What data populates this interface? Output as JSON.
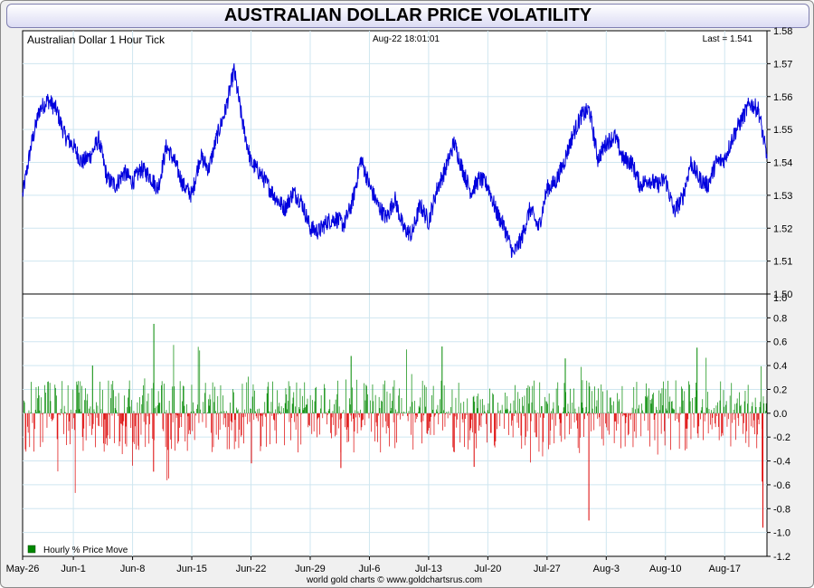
{
  "title": "AUSTRALIAN DOLLAR PRICE VOLATILITY",
  "credit": "world gold charts © www.goldchartsrus.com",
  "colors": {
    "price_line": "#0000dd",
    "up_bar": "#008800",
    "down_bar": "#dd0000",
    "grid": "#cfe6f0"
  },
  "chart_data": [
    {
      "type": "line",
      "name": "price-panel",
      "title": "Australian Dollar 1 Hour Tick",
      "timestamp": "Aug-22  18:01:01",
      "last_label": "Last = 1.541",
      "ylim": [
        1.5,
        1.58
      ],
      "yticks": [
        1.5,
        1.51,
        1.52,
        1.53,
        1.54,
        1.55,
        1.56,
        1.57,
        1.58
      ],
      "x_start": "May-26",
      "x_end": "Aug-22",
      "grid": true,
      "series": [
        {
          "x": [
            "May-26",
            "May-27",
            "May-28",
            "May-29",
            "May-30",
            "May-31",
            "Jun-1",
            "Jun-2",
            "Jun-3",
            "Jun-4",
            "Jun-5",
            "Jun-6",
            "Jun-7",
            "Jun-8",
            "Jun-9",
            "Jun-10",
            "Jun-11",
            "Jun-12",
            "Jun-13",
            "Jun-14",
            "Jun-15",
            "Jun-16",
            "Jun-17",
            "Jun-18",
            "Jun-19",
            "Jun-20",
            "Jun-21",
            "Jun-22",
            "Jun-23",
            "Jun-24",
            "Jun-25",
            "Jun-26",
            "Jun-27",
            "Jun-28",
            "Jun-29",
            "Jun-30",
            "Jul-1",
            "Jul-2",
            "Jul-3",
            "Jul-4",
            "Jul-5",
            "Jul-6",
            "Jul-7",
            "Jul-8",
            "Jul-9",
            "Jul-10",
            "Jul-11",
            "Jul-12",
            "Jul-13",
            "Jul-14",
            "Jul-15",
            "Jul-16",
            "Jul-17",
            "Jul-18",
            "Jul-19",
            "Jul-20",
            "Jul-21",
            "Jul-22",
            "Jul-23",
            "Jul-24",
            "Jul-25",
            "Jul-26",
            "Jul-27",
            "Jul-28",
            "Jul-29",
            "Jul-30",
            "Jul-31",
            "Aug-1",
            "Aug-2",
            "Aug-3",
            "Aug-4",
            "Aug-5",
            "Aug-6",
            "Aug-7",
            "Aug-8",
            "Aug-9",
            "Aug-10",
            "Aug-11",
            "Aug-12",
            "Aug-13",
            "Aug-14",
            "Aug-15",
            "Aug-16",
            "Aug-17",
            "Aug-18",
            "Aug-19",
            "Aug-20",
            "Aug-21",
            "Aug-22"
          ],
          "y": [
            1.53,
            1.545,
            1.556,
            1.559,
            1.556,
            1.548,
            1.545,
            1.54,
            1.542,
            1.547,
            1.535,
            1.533,
            1.537,
            1.534,
            1.538,
            1.536,
            1.532,
            1.545,
            1.54,
            1.533,
            1.53,
            1.542,
            1.538,
            1.548,
            1.556,
            1.568,
            1.552,
            1.54,
            1.537,
            1.533,
            1.529,
            1.526,
            1.531,
            1.528,
            1.52,
            1.519,
            1.522,
            1.523,
            1.521,
            1.528,
            1.541,
            1.533,
            1.527,
            1.523,
            1.529,
            1.52,
            1.518,
            1.527,
            1.522,
            1.532,
            1.538,
            1.546,
            1.538,
            1.531,
            1.535,
            1.533,
            1.525,
            1.52,
            1.512,
            1.517,
            1.526,
            1.52,
            1.532,
            1.534,
            1.54,
            1.548,
            1.554,
            1.556,
            1.541,
            1.546,
            1.548,
            1.541,
            1.54,
            1.533,
            1.535,
            1.533,
            1.535,
            1.525,
            1.529,
            1.54,
            1.535,
            1.533,
            1.54,
            1.541,
            1.548,
            1.553,
            1.558,
            1.556,
            1.541
          ]
        }
      ]
    },
    {
      "type": "bar",
      "name": "volatility-panel",
      "legend": "Hourly % Price Move",
      "legend_position": "bottom-left",
      "ylim": [
        -1.2,
        1.0
      ],
      "yticks": [
        1.0,
        0.8,
        0.6,
        0.4,
        0.2,
        0.0,
        -0.2,
        -0.4,
        -0.6,
        -0.8,
        -1.0,
        -1.2
      ],
      "xtick_labels": [
        "May-26",
        "Jun-1",
        "Jun-8",
        "Jun-15",
        "Jun-22",
        "Jun-29",
        "Jul-6",
        "Jul-13",
        "Jul-20",
        "Jul-27",
        "Aug-3",
        "Aug-10",
        "Aug-17"
      ],
      "grid": true,
      "spikes": [
        {
          "date": "Jun-11",
          "value": 0.75
        },
        {
          "date": "Jun-3",
          "value": 0.4
        },
        {
          "date": "Jul-4",
          "value": 0.48
        },
        {
          "date": "Jul-14",
          "value": 0.56
        },
        {
          "date": "Jul-29",
          "value": 0.46
        },
        {
          "date": "Aug-14",
          "value": 0.55
        },
        {
          "date": "Jun-10",
          "value": -0.49
        },
        {
          "date": "Jun-22",
          "value": -0.42
        },
        {
          "date": "Jul-3",
          "value": -0.46
        },
        {
          "date": "Jul-18",
          "value": -0.45
        },
        {
          "date": "Aug-1",
          "value": -0.9
        },
        {
          "date": "Aug-22",
          "value": -0.96
        }
      ],
      "typical_up": 0.15,
      "typical_down": -0.15
    }
  ]
}
